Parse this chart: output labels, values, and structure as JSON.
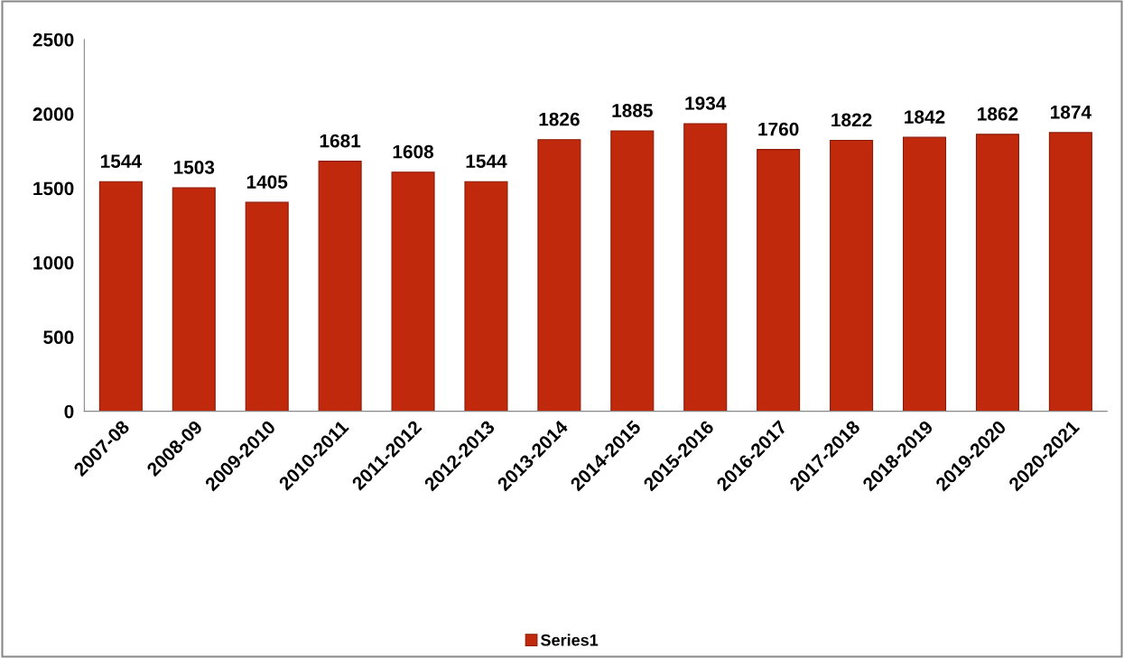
{
  "chart_data": {
    "type": "bar",
    "categories": [
      "2007-08",
      "2008-09",
      "2009-2010",
      "2010-2011",
      "2011-2012",
      "2012-2013",
      "2013-2014",
      "2014-2015",
      "2015-2016",
      "2016-2017",
      "2017-2018",
      "2018-2019",
      "2019-2020",
      "2020-2021"
    ],
    "series": [
      {
        "name": "Series1",
        "color": "#c0290c",
        "values": [
          1544,
          1503,
          1405,
          1681,
          1608,
          1544,
          1826,
          1885,
          1934,
          1760,
          1822,
          1842,
          1862,
          1874
        ]
      }
    ],
    "ylim": [
      0,
      2500
    ],
    "yticks": [
      0,
      500,
      1000,
      1500,
      2000,
      2500
    ],
    "data_labels": true,
    "grid": false,
    "legend": "bottom"
  }
}
